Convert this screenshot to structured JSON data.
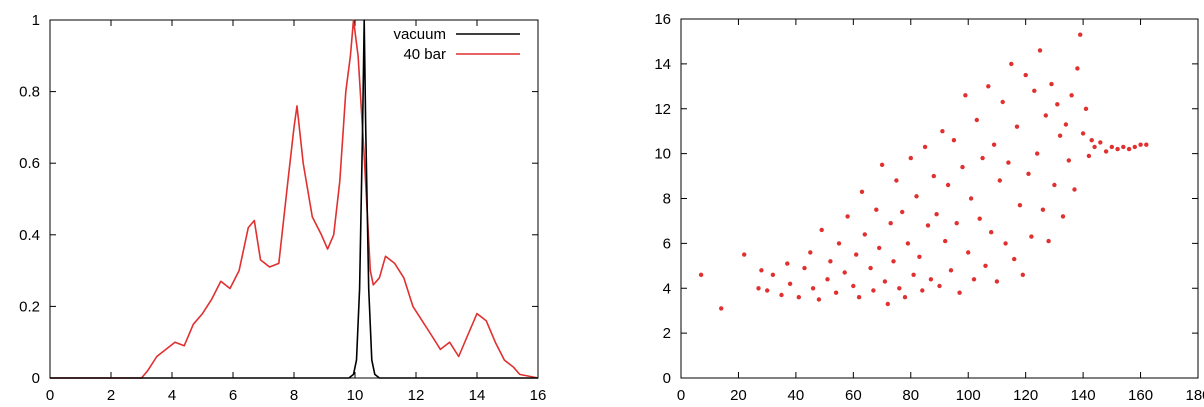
{
  "chart_data": [
    {
      "type": "line",
      "title": "",
      "xlabel": "",
      "ylabel": "",
      "xlim": [
        0,
        16
      ],
      "ylim": [
        0,
        1
      ],
      "x_ticks": [
        0,
        2,
        4,
        6,
        8,
        10,
        12,
        14,
        16
      ],
      "y_ticks": [
        0,
        0.2,
        0.4,
        0.6,
        0.8,
        1
      ],
      "x_tick_labels": [
        "0",
        "2",
        "4",
        "6",
        "8",
        "10",
        "12",
        "14",
        "16"
      ],
      "y_tick_labels": [
        "0",
        "0.2",
        "0.4",
        "0.6",
        "0.8",
        "1"
      ],
      "grid": false,
      "legend_position": "top-right",
      "series": [
        {
          "name": "vacuum",
          "color": "#000000",
          "x": [
            0,
            9.8,
            9.95,
            10.05,
            10.15,
            10.25,
            10.3,
            10.35,
            10.45,
            10.55,
            10.65,
            10.8,
            16
          ],
          "y": [
            0,
            0,
            0.01,
            0.05,
            0.25,
            0.7,
            1.0,
            0.7,
            0.25,
            0.05,
            0.01,
            0,
            0
          ]
        },
        {
          "name": "40 bar",
          "color": "#e03030",
          "x": [
            0,
            3.0,
            3.2,
            3.5,
            3.8,
            4.1,
            4.4,
            4.7,
            5.0,
            5.3,
            5.6,
            5.9,
            6.2,
            6.5,
            6.7,
            6.9,
            7.2,
            7.5,
            7.8,
            8.0,
            8.1,
            8.3,
            8.6,
            8.9,
            9.1,
            9.3,
            9.5,
            9.7,
            9.85,
            9.95,
            10.1,
            10.3,
            10.5,
            10.6,
            10.8,
            11.0,
            11.3,
            11.6,
            11.9,
            12.2,
            12.5,
            12.8,
            13.1,
            13.4,
            13.7,
            14.0,
            14.3,
            14.6,
            14.9,
            15.2,
            15.4,
            16
          ],
          "y": [
            0,
            0,
            0.02,
            0.06,
            0.08,
            0.1,
            0.09,
            0.15,
            0.18,
            0.22,
            0.27,
            0.25,
            0.3,
            0.42,
            0.44,
            0.33,
            0.31,
            0.32,
            0.55,
            0.7,
            0.76,
            0.6,
            0.45,
            0.4,
            0.36,
            0.4,
            0.55,
            0.8,
            0.9,
            1.0,
            0.9,
            0.62,
            0.3,
            0.26,
            0.28,
            0.34,
            0.32,
            0.28,
            0.2,
            0.16,
            0.12,
            0.08,
            0.1,
            0.06,
            0.12,
            0.18,
            0.16,
            0.1,
            0.05,
            0.03,
            0.01,
            0
          ]
        }
      ]
    },
    {
      "type": "scatter",
      "title": "",
      "xlabel": "",
      "ylabel": "",
      "xlim": [
        0,
        180
      ],
      "ylim": [
        0,
        16
      ],
      "x_ticks": [
        0,
        20,
        40,
        60,
        80,
        100,
        120,
        140,
        160,
        180
      ],
      "y_ticks": [
        0,
        2,
        4,
        6,
        8,
        10,
        12,
        14,
        16
      ],
      "x_tick_labels": [
        "0",
        "20",
        "40",
        "60",
        "80",
        "100",
        "120",
        "140",
        "160",
        "180"
      ],
      "y_tick_labels": [
        "0",
        "2",
        "4",
        "6",
        "8",
        "10",
        "12",
        "14",
        "16"
      ],
      "grid": false,
      "color": "#e03030",
      "description_of_distribution": [],
      "points": [
        [
          7,
          4.6
        ],
        [
          14,
          3.1
        ],
        [
          22,
          5.5
        ],
        [
          27,
          4.0
        ],
        [
          28,
          4.8
        ],
        [
          30,
          3.9
        ],
        [
          32,
          4.6
        ],
        [
          35,
          3.7
        ],
        [
          37,
          5.1
        ],
        [
          38,
          4.2
        ],
        [
          41,
          3.6
        ],
        [
          43,
          4.9
        ],
        [
          45,
          5.6
        ],
        [
          46,
          4.0
        ],
        [
          48,
          3.5
        ],
        [
          49,
          6.6
        ],
        [
          51,
          4.4
        ],
        [
          52,
          5.2
        ],
        [
          54,
          3.8
        ],
        [
          55,
          6.0
        ],
        [
          57,
          4.7
        ],
        [
          58,
          7.2
        ],
        [
          60,
          4.1
        ],
        [
          61,
          5.5
        ],
        [
          62,
          3.6
        ],
        [
          63,
          8.3
        ],
        [
          64,
          6.4
        ],
        [
          66,
          4.9
        ],
        [
          67,
          3.9
        ],
        [
          68,
          7.5
        ],
        [
          69,
          5.8
        ],
        [
          70,
          9.5
        ],
        [
          71,
          4.3
        ],
        [
          72,
          3.3
        ],
        [
          73,
          6.9
        ],
        [
          74,
          5.2
        ],
        [
          75,
          8.8
        ],
        [
          76,
          4.0
        ],
        [
          77,
          7.4
        ],
        [
          78,
          3.6
        ],
        [
          79,
          6.0
        ],
        [
          80,
          9.8
        ],
        [
          81,
          4.6
        ],
        [
          82,
          8.1
        ],
        [
          83,
          5.4
        ],
        [
          84,
          3.9
        ],
        [
          85,
          10.3
        ],
        [
          86,
          6.8
        ],
        [
          87,
          4.4
        ],
        [
          88,
          9.0
        ],
        [
          89,
          7.3
        ],
        [
          90,
          4.1
        ],
        [
          91,
          11.0
        ],
        [
          92,
          6.1
        ],
        [
          93,
          8.6
        ],
        [
          94,
          4.8
        ],
        [
          95,
          10.6
        ],
        [
          96,
          6.9
        ],
        [
          97,
          3.8
        ],
        [
          98,
          9.4
        ],
        [
          99,
          12.6
        ],
        [
          100,
          5.6
        ],
        [
          101,
          8.0
        ],
        [
          102,
          4.4
        ],
        [
          103,
          11.5
        ],
        [
          104,
          7.1
        ],
        [
          105,
          9.8
        ],
        [
          106,
          5.0
        ],
        [
          107,
          13.0
        ],
        [
          108,
          6.5
        ],
        [
          109,
          10.4
        ],
        [
          110,
          4.3
        ],
        [
          111,
          8.8
        ],
        [
          112,
          12.3
        ],
        [
          113,
          6.0
        ],
        [
          114,
          9.6
        ],
        [
          115,
          14.0
        ],
        [
          116,
          5.3
        ],
        [
          117,
          11.2
        ],
        [
          118,
          7.7
        ],
        [
          119,
          4.6
        ],
        [
          120,
          13.5
        ],
        [
          121,
          9.1
        ],
        [
          122,
          6.3
        ],
        [
          123,
          12.8
        ],
        [
          124,
          10.0
        ],
        [
          125,
          14.6
        ],
        [
          126,
          7.5
        ],
        [
          127,
          11.7
        ],
        [
          128,
          6.1
        ],
        [
          129,
          13.1
        ],
        [
          130,
          8.6
        ],
        [
          131,
          12.2
        ],
        [
          132,
          10.8
        ],
        [
          133,
          7.2
        ],
        [
          134,
          11.3
        ],
        [
          135,
          9.7
        ],
        [
          136,
          12.6
        ],
        [
          137,
          8.4
        ],
        [
          138,
          13.8
        ],
        [
          139,
          15.3
        ],
        [
          140,
          10.9
        ],
        [
          141,
          12.0
        ],
        [
          142,
          9.9
        ],
        [
          143,
          10.6
        ],
        [
          144,
          10.3
        ],
        [
          146,
          10.5
        ],
        [
          148,
          10.1
        ],
        [
          150,
          10.3
        ],
        [
          152,
          10.2
        ],
        [
          154,
          10.3
        ],
        [
          156,
          10.2
        ],
        [
          158,
          10.3
        ],
        [
          160,
          10.4
        ],
        [
          162,
          10.4
        ]
      ]
    }
  ]
}
